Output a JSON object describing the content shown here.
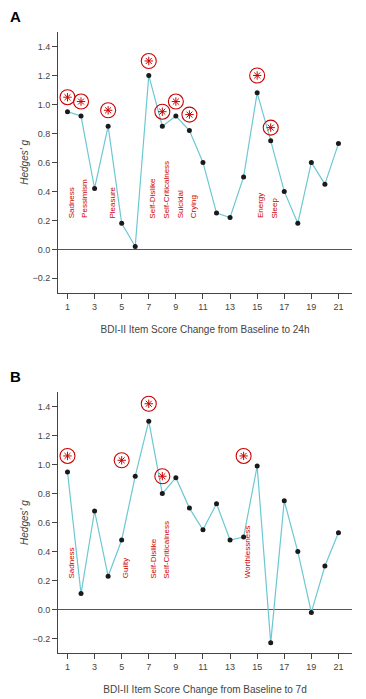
{
  "chart_data": [
    {
      "type": "line",
      "title": "A",
      "x": [
        1,
        2,
        3,
        4,
        5,
        6,
        7,
        8,
        9,
        10,
        11,
        12,
        13,
        14,
        15,
        16,
        17,
        18,
        19,
        20,
        21
      ],
      "series": [
        {
          "type": "line",
          "color": "#6cc8d2",
          "values": [
            0.95,
            0.92,
            0.42,
            0.85,
            0.18,
            0.02,
            1.2,
            0.85,
            0.92,
            0.82,
            0.6,
            0.25,
            0.22,
            0.5,
            1.08,
            0.75,
            0.4,
            0.18,
            0.6,
            0.45,
            0.73
          ]
        },
        {
          "type": "scatter",
          "color": "#1a1a1a",
          "marker": "circle",
          "values": [
            0.95,
            0.92,
            0.42,
            0.85,
            0.18,
            0.02,
            1.2,
            0.85,
            0.92,
            0.82,
            0.6,
            0.25,
            0.22,
            0.5,
            1.08,
            0.75,
            0.4,
            0.18,
            0.6,
            0.45,
            0.73
          ]
        },
        {
          "type": "scatter",
          "color": "#cc0000",
          "marker": "circled-asterisk",
          "values": [
            1.05,
            1.02,
            null,
            0.96,
            null,
            null,
            1.3,
            0.95,
            1.02,
            0.93,
            null,
            null,
            null,
            null,
            1.2,
            0.84,
            null,
            null,
            null,
            null,
            null
          ]
        }
      ],
      "annotations": [
        {
          "text": "Sadness",
          "x": 1,
          "y": 0.2,
          "color": "#cc0000"
        },
        {
          "text": "Pessimism",
          "x": 2,
          "y": 0.2,
          "color": "#cc0000"
        },
        {
          "text": "Pleasure",
          "x": 4,
          "y": 0.2,
          "color": "#cc0000"
        },
        {
          "text": "Self-Dislike",
          "x": 7,
          "y": 0.2,
          "color": "#cc0000"
        },
        {
          "text": "Self-Criticalness",
          "x": 8,
          "y": 0.2,
          "color": "#cc0000"
        },
        {
          "text": "Suicidal",
          "x": 9,
          "y": 0.2,
          "color": "#cc0000"
        },
        {
          "text": "Crying",
          "x": 10,
          "y": 0.2,
          "color": "#cc0000"
        },
        {
          "text": "Energy",
          "x": 15,
          "y": 0.2,
          "color": "#cc0000"
        },
        {
          "text": "Sleep",
          "x": 16,
          "y": 0.2,
          "color": "#cc0000"
        }
      ],
      "x_label": "BDI-II Item Score Change from Baseline to 24h",
      "y_label": "Hedges' g",
      "xlim": [
        0.3,
        22
      ],
      "xticks": [
        1,
        3,
        5,
        7,
        9,
        11,
        13,
        15,
        17,
        19,
        21
      ],
      "ylim": [
        -0.3,
        1.5
      ],
      "yticks": [
        {
          "value": -0.2,
          "label": "−0.2"
        },
        {
          "value": 0.0,
          "label": "0.0"
        },
        0.2,
        0.4,
        0.6,
        0.8,
        {
          "value": 1.0,
          "label": "1.0"
        },
        1.2,
        1.4
      ],
      "grid": false
    },
    {
      "type": "line",
      "title": "B",
      "x": [
        1,
        2,
        3,
        4,
        5,
        6,
        7,
        8,
        9,
        10,
        11,
        12,
        13,
        14,
        15,
        16,
        17,
        18,
        19,
        20,
        21
      ],
      "series": [
        {
          "type": "line",
          "color": "#6cc8d2",
          "values": [
            0.95,
            0.11,
            0.68,
            0.23,
            0.48,
            0.92,
            1.3,
            0.8,
            0.91,
            0.7,
            0.55,
            0.73,
            0.48,
            0.5,
            0.99,
            -0.23,
            0.75,
            0.4,
            -0.02,
            0.3,
            0.53
          ]
        },
        {
          "type": "scatter",
          "color": "#1a1a1a",
          "marker": "circle",
          "values": [
            0.95,
            0.11,
            0.68,
            0.23,
            0.48,
            0.92,
            1.3,
            0.8,
            0.91,
            0.7,
            0.55,
            0.73,
            0.48,
            0.5,
            0.99,
            -0.23,
            0.75,
            0.4,
            -0.02,
            0.3,
            0.53
          ]
        },
        {
          "type": "scatter",
          "color": "#cc0000",
          "marker": "circled-asterisk",
          "values": [
            1.06,
            null,
            null,
            null,
            1.03,
            null,
            1.42,
            0.92,
            null,
            null,
            null,
            null,
            null,
            1.06,
            null,
            null,
            null,
            null,
            null,
            null,
            null
          ]
        }
      ],
      "annotations": [
        {
          "text": "Sadness",
          "x": 1,
          "y": 0.2,
          "color": "#cc0000"
        },
        {
          "text": "Guilty",
          "x": 5,
          "y": 0.2,
          "color": "#cc0000"
        },
        {
          "text": "Self-Dislike",
          "x": 7,
          "y": 0.2,
          "color": "#cc0000"
        },
        {
          "text": "Self-Criticalness",
          "x": 8,
          "y": 0.2,
          "color": "#cc0000"
        },
        {
          "text": "Worthlessness",
          "x": 14,
          "y": 0.2,
          "color": "#cc0000"
        }
      ],
      "x_label": "BDI-II Item Score Change from Baseline to 7d",
      "y_label": "Hedges' g",
      "xlim": [
        0.3,
        22
      ],
      "xticks": [
        1,
        3,
        5,
        7,
        9,
        11,
        13,
        15,
        17,
        19,
        21
      ],
      "ylim": [
        -0.3,
        1.5
      ],
      "yticks": [
        {
          "value": -0.2,
          "label": "−0.2"
        },
        {
          "value": 0.0,
          "label": "0.0"
        },
        0.2,
        0.4,
        0.6,
        0.8,
        {
          "value": 1.0,
          "label": "1.0"
        },
        1.2,
        1.4
      ],
      "grid": false
    }
  ]
}
